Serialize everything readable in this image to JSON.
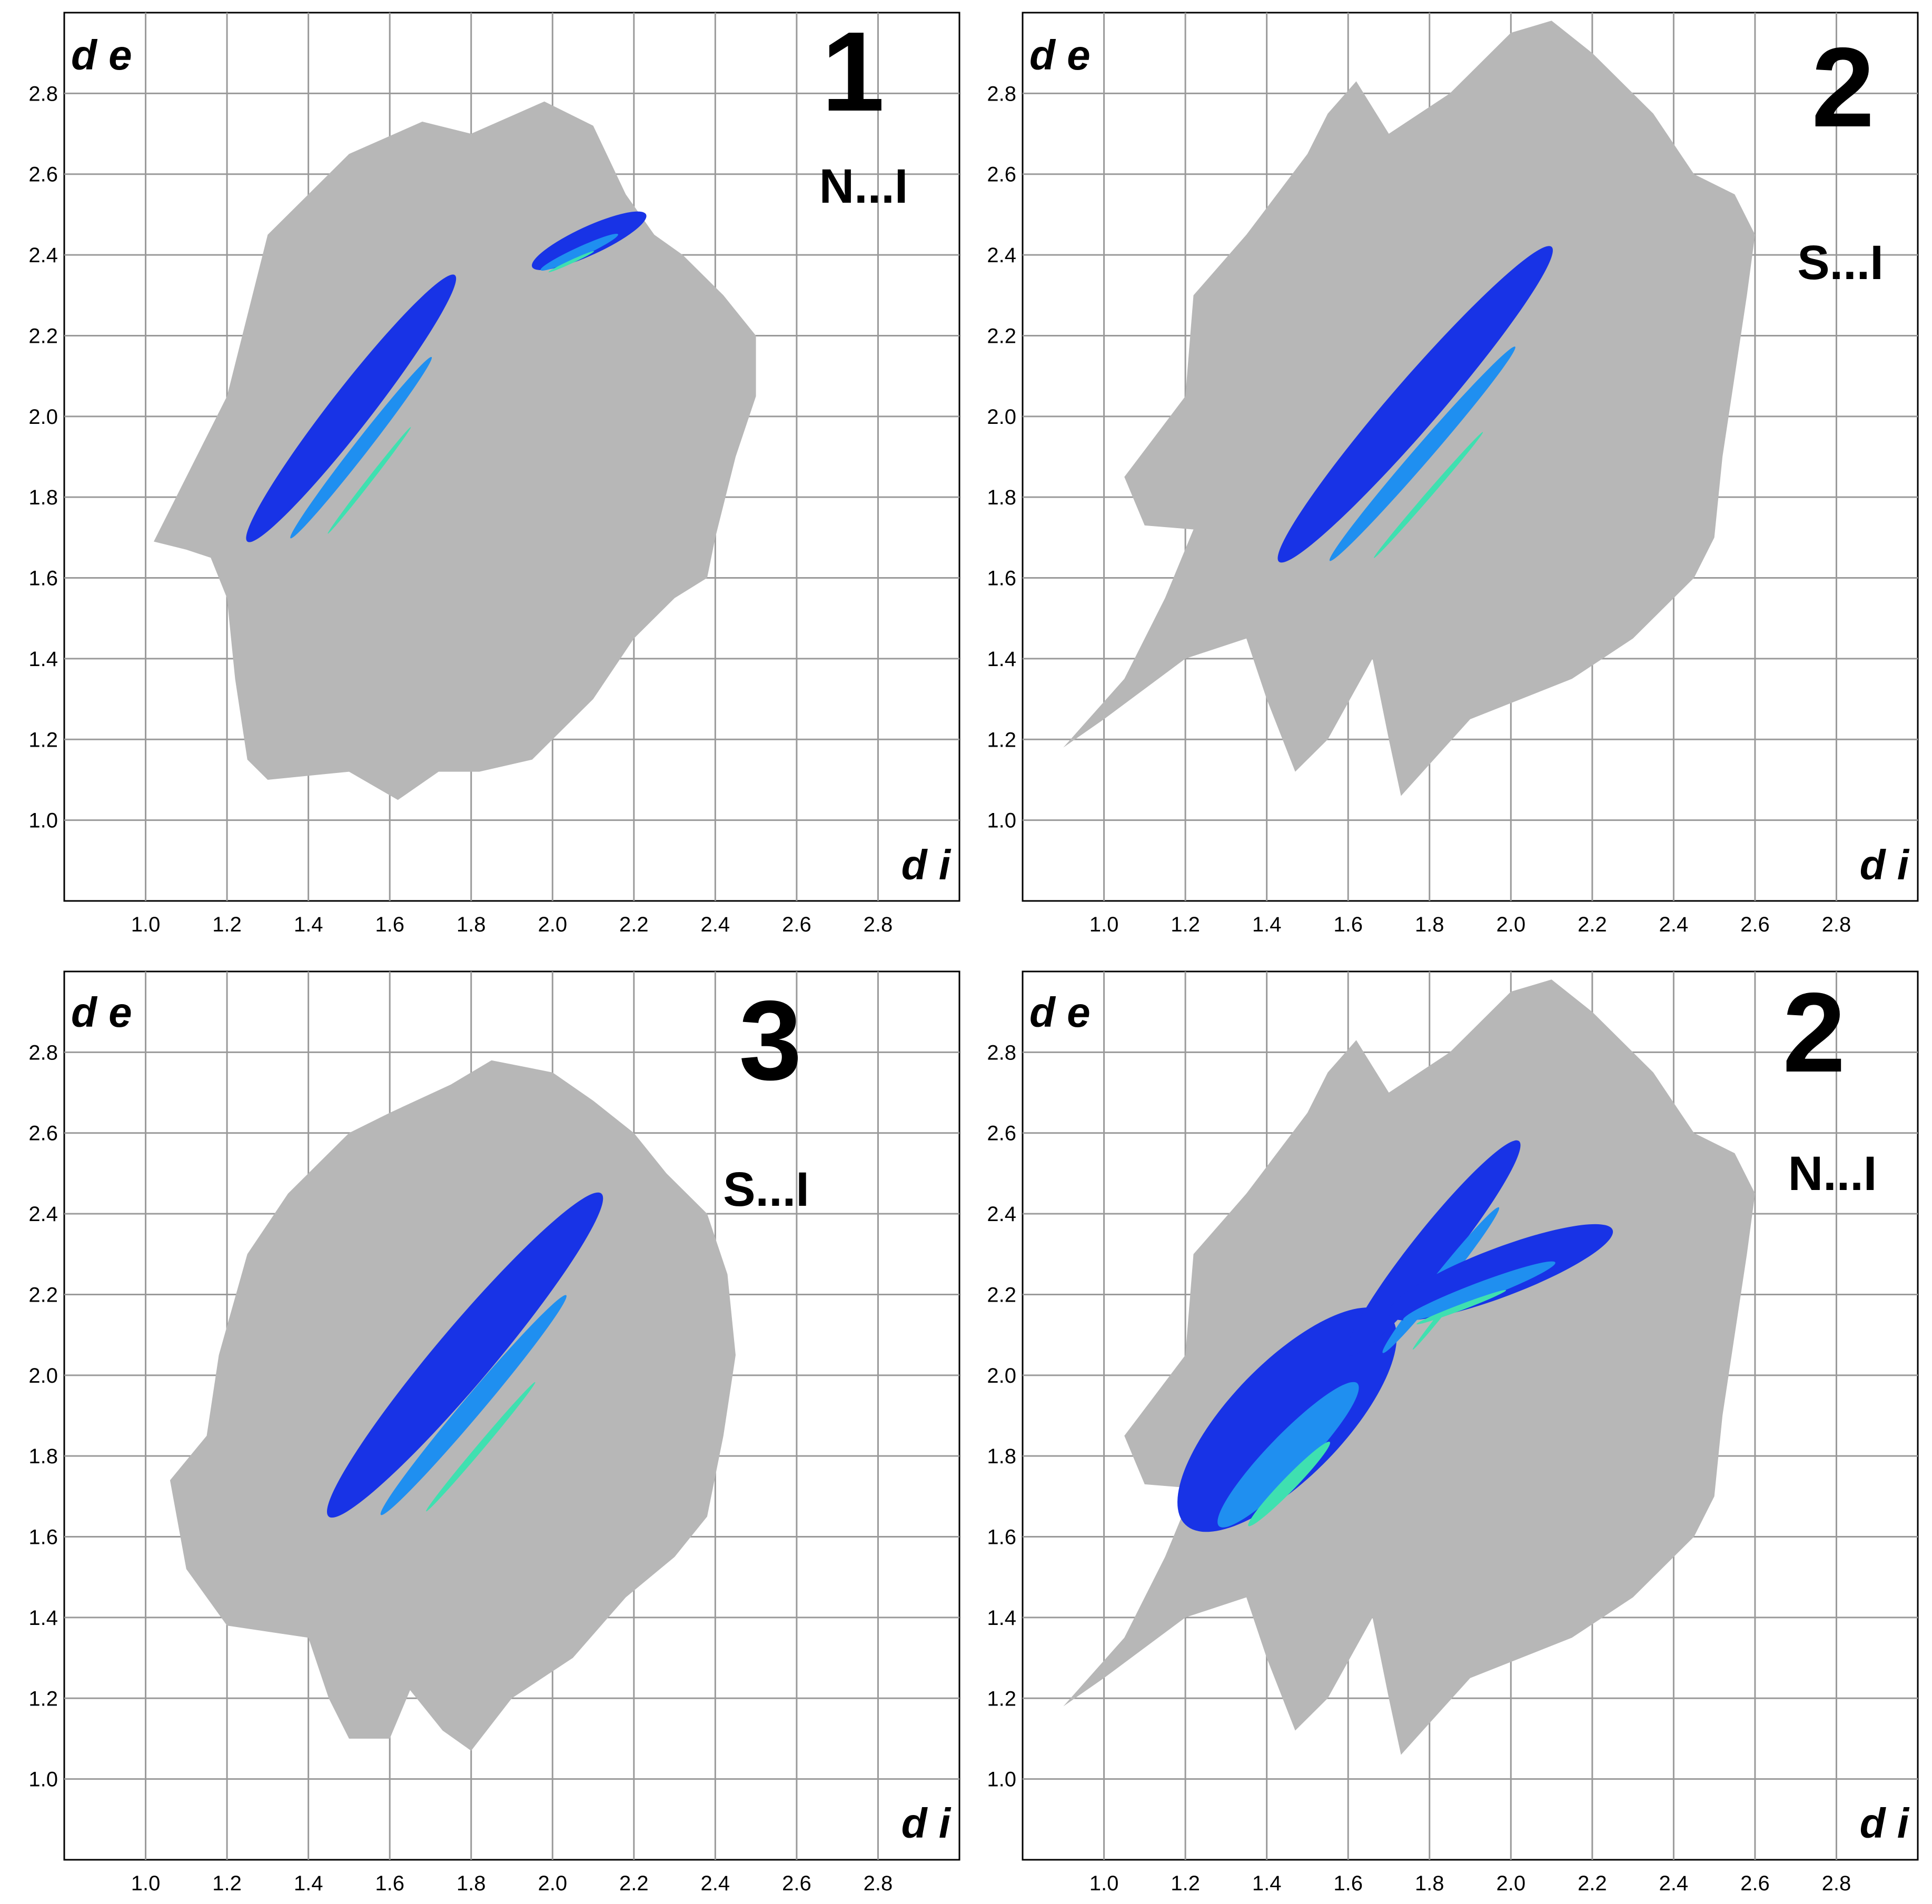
{
  "chart_data": [
    {
      "type": "scatter",
      "panel_number": "1",
      "contact": "N...I",
      "xlabel": "d i",
      "ylabel": "d e",
      "xlim": [
        0.8,
        3.0
      ],
      "ylim": [
        0.8,
        3.0
      ],
      "xticks": [
        "1.0",
        "1.2",
        "1.4",
        "1.6",
        "1.8",
        "2.0",
        "2.2",
        "2.4",
        "2.6",
        "2.8"
      ],
      "yticks": [
        "1.0",
        "1.2",
        "1.4",
        "1.6",
        "1.8",
        "2.0",
        "2.2",
        "2.4",
        "2.6",
        "2.8"
      ],
      "grid": true,
      "regions": [
        {
          "name": "all contacts",
          "color": "#b7b7b7",
          "outline": [
            [
              1.02,
              1.69
            ],
            [
              1.2,
              2.05
            ],
            [
              1.3,
              2.45
            ],
            [
              1.5,
              2.65
            ],
            [
              1.68,
              2.73
            ],
            [
              1.8,
              2.7
            ],
            [
              1.98,
              2.78
            ],
            [
              2.1,
              2.72
            ],
            [
              2.18,
              2.55
            ],
            [
              2.25,
              2.45
            ],
            [
              2.32,
              2.4
            ],
            [
              2.42,
              2.3
            ],
            [
              2.5,
              2.2
            ],
            [
              2.5,
              2.05
            ],
            [
              2.45,
              1.9
            ],
            [
              2.4,
              1.7
            ],
            [
              2.38,
              1.6
            ],
            [
              2.3,
              1.55
            ],
            [
              2.2,
              1.45
            ],
            [
              2.1,
              1.3
            ],
            [
              1.95,
              1.15
            ],
            [
              1.82,
              1.12
            ],
            [
              1.72,
              1.12
            ],
            [
              1.62,
              1.05
            ],
            [
              1.5,
              1.12
            ],
            [
              1.3,
              1.1
            ],
            [
              1.25,
              1.15
            ],
            [
              1.22,
              1.35
            ],
            [
              1.2,
              1.55
            ],
            [
              1.16,
              1.65
            ],
            [
              1.1,
              1.67
            ]
          ]
        }
      ],
      "highlight": [
        {
          "from": [
            1.25,
            1.69
          ],
          "to": [
            1.76,
            2.35
          ],
          "width": 0.05
        },
        {
          "from": [
            1.95,
            2.37
          ],
          "to": [
            2.23,
            2.5
          ],
          "width": 0.035
        }
      ]
    },
    {
      "type": "scatter",
      "panel_number": "2",
      "contact": "S...I",
      "xlabel": "d i",
      "ylabel": "d e",
      "xlim": [
        0.8,
        3.0
      ],
      "ylim": [
        0.8,
        3.0
      ],
      "xticks": [
        "1.0",
        "1.2",
        "1.4",
        "1.6",
        "1.8",
        "2.0",
        "2.2",
        "2.4",
        "2.6",
        "2.8"
      ],
      "yticks": [
        "1.0",
        "1.2",
        "1.4",
        "1.6",
        "1.8",
        "2.0",
        "2.2",
        "2.4",
        "2.6",
        "2.8"
      ],
      "grid": true,
      "regions": [
        {
          "name": "all contacts",
          "color": "#b7b7b7",
          "outline": [
            [
              0.9,
              1.18
            ],
            [
              1.05,
              1.35
            ],
            [
              1.15,
              1.55
            ],
            [
              1.22,
              1.72
            ],
            [
              1.1,
              1.73
            ],
            [
              1.05,
              1.85
            ],
            [
              1.2,
              2.05
            ],
            [
              1.22,
              2.3
            ],
            [
              1.35,
              2.45
            ],
            [
              1.5,
              2.65
            ],
            [
              1.55,
              2.75
            ],
            [
              1.62,
              2.83
            ],
            [
              1.7,
              2.7
            ],
            [
              1.85,
              2.8
            ],
            [
              2.0,
              2.95
            ],
            [
              2.1,
              2.98
            ],
            [
              2.2,
              2.9
            ],
            [
              2.35,
              2.75
            ],
            [
              2.45,
              2.6
            ],
            [
              2.55,
              2.55
            ],
            [
              2.6,
              2.45
            ],
            [
              2.58,
              2.3
            ],
            [
              2.55,
              2.1
            ],
            [
              2.52,
              1.9
            ],
            [
              2.5,
              1.7
            ],
            [
              2.45,
              1.6
            ],
            [
              2.3,
              1.45
            ],
            [
              2.15,
              1.35
            ],
            [
              1.9,
              1.25
            ],
            [
              1.73,
              1.06
            ],
            [
              1.7,
              1.2
            ],
            [
              1.66,
              1.4
            ],
            [
              1.55,
              1.2
            ],
            [
              1.47,
              1.12
            ],
            [
              1.4,
              1.3
            ],
            [
              1.35,
              1.45
            ],
            [
              1.2,
              1.4
            ],
            [
              1.0,
              1.25
            ]
          ]
        }
      ],
      "highlight": [
        {
          "from": [
            1.43,
            1.64
          ],
          "to": [
            2.1,
            2.42
          ],
          "width": 0.06
        }
      ]
    },
    {
      "type": "scatter",
      "panel_number": "3",
      "contact": "S...I",
      "xlabel": "d i",
      "ylabel": "d e",
      "xlim": [
        0.8,
        3.0
      ],
      "ylim": [
        0.8,
        3.0
      ],
      "xticks": [
        "1.0",
        "1.2",
        "1.4",
        "1.6",
        "1.8",
        "2.0",
        "2.2",
        "2.4",
        "2.6",
        "2.8"
      ],
      "yticks": [
        "1.0",
        "1.2",
        "1.4",
        "1.6",
        "1.8",
        "2.0",
        "2.2",
        "2.4",
        "2.6",
        "2.8"
      ],
      "grid": true,
      "regions": [
        {
          "name": "all contacts",
          "color": "#b7b7b7",
          "outline": [
            [
              1.1,
              1.52
            ],
            [
              1.06,
              1.74
            ],
            [
              1.15,
              1.85
            ],
            [
              1.18,
              2.05
            ],
            [
              1.25,
              2.3
            ],
            [
              1.35,
              2.45
            ],
            [
              1.5,
              2.6
            ],
            [
              1.6,
              2.65
            ],
            [
              1.75,
              2.72
            ],
            [
              1.85,
              2.78
            ],
            [
              2.0,
              2.75
            ],
            [
              2.1,
              2.68
            ],
            [
              2.2,
              2.6
            ],
            [
              2.28,
              2.5
            ],
            [
              2.38,
              2.4
            ],
            [
              2.43,
              2.25
            ],
            [
              2.45,
              2.05
            ],
            [
              2.42,
              1.85
            ],
            [
              2.38,
              1.65
            ],
            [
              2.3,
              1.55
            ],
            [
              2.18,
              1.45
            ],
            [
              2.05,
              1.3
            ],
            [
              1.9,
              1.2
            ],
            [
              1.8,
              1.07
            ],
            [
              1.73,
              1.12
            ],
            [
              1.65,
              1.22
            ],
            [
              1.6,
              1.1
            ],
            [
              1.5,
              1.1
            ],
            [
              1.45,
              1.2
            ],
            [
              1.4,
              1.35
            ],
            [
              1.2,
              1.38
            ],
            [
              1.15,
              1.45
            ]
          ]
        }
      ],
      "highlight": [
        {
          "from": [
            1.45,
            1.65
          ],
          "to": [
            2.12,
            2.45
          ],
          "width": 0.07
        }
      ]
    },
    {
      "type": "scatter",
      "panel_number": "2",
      "contact": "N...I",
      "xlabel": "d i",
      "ylabel": "d e",
      "xlim": [
        0.8,
        3.0
      ],
      "ylim": [
        0.8,
        3.0
      ],
      "xticks": [
        "1.0",
        "1.2",
        "1.4",
        "1.6",
        "1.8",
        "2.0",
        "2.2",
        "2.4",
        "2.6",
        "2.8"
      ],
      "yticks": [
        "1.0",
        "1.2",
        "1.4",
        "1.6",
        "1.8",
        "2.0",
        "2.2",
        "2.4",
        "2.6",
        "2.8"
      ],
      "grid": true,
      "regions": [
        {
          "name": "all contacts",
          "color": "#b7b7b7",
          "outline": [
            [
              0.9,
              1.18
            ],
            [
              1.05,
              1.35
            ],
            [
              1.15,
              1.55
            ],
            [
              1.22,
              1.72
            ],
            [
              1.1,
              1.73
            ],
            [
              1.05,
              1.85
            ],
            [
              1.2,
              2.05
            ],
            [
              1.22,
              2.3
            ],
            [
              1.35,
              2.45
            ],
            [
              1.5,
              2.65
            ],
            [
              1.55,
              2.75
            ],
            [
              1.62,
              2.83
            ],
            [
              1.7,
              2.7
            ],
            [
              1.85,
              2.8
            ],
            [
              2.0,
              2.95
            ],
            [
              2.1,
              2.98
            ],
            [
              2.2,
              2.9
            ],
            [
              2.35,
              2.75
            ],
            [
              2.45,
              2.6
            ],
            [
              2.55,
              2.55
            ],
            [
              2.6,
              2.45
            ],
            [
              2.58,
              2.3
            ],
            [
              2.55,
              2.1
            ],
            [
              2.52,
              1.9
            ],
            [
              2.5,
              1.7
            ],
            [
              2.45,
              1.6
            ],
            [
              2.3,
              1.45
            ],
            [
              2.15,
              1.35
            ],
            [
              1.9,
              1.25
            ],
            [
              1.73,
              1.06
            ],
            [
              1.7,
              1.2
            ],
            [
              1.66,
              1.4
            ],
            [
              1.55,
              1.2
            ],
            [
              1.47,
              1.12
            ],
            [
              1.4,
              1.3
            ],
            [
              1.35,
              1.45
            ],
            [
              1.2,
              1.4
            ],
            [
              1.0,
              1.25
            ]
          ]
        }
      ],
      "highlight": [
        {
          "from": [
            1.2,
            1.63
          ],
          "to": [
            1.7,
            2.15
          ],
          "width": 0.14
        },
        {
          "from": [
            1.6,
            2.05
          ],
          "to": [
            2.02,
            2.58
          ],
          "width": 0.05
        },
        {
          "from": [
            1.7,
            2.15
          ],
          "to": [
            2.25,
            2.36
          ],
          "width": 0.06
        }
      ]
    }
  ]
}
